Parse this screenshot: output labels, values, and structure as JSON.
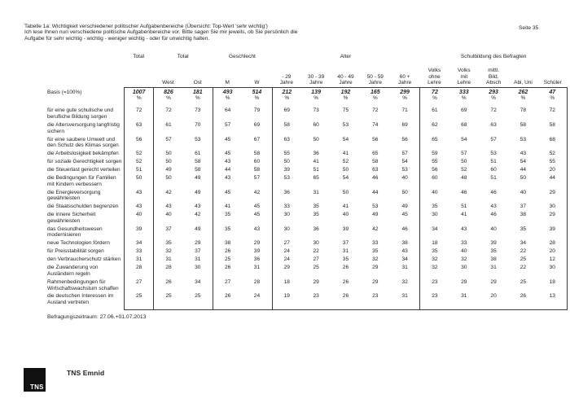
{
  "page": {
    "number_label": "Seite 35"
  },
  "header": {
    "title": "Tabelle 1a: Wichtigkeit verschiedener politischer Aufgabenbereiche (Übersicht: Top-Wert 'sehr wichtig')",
    "intro_line1": "Ich lese Ihnen nun verschiedene politische Aufgabenbereiche vor. Bitte sagen Sie mir jeweils, ob Sie persönlich die",
    "intro_line2": "Aufgabe für sehr wichtig - wichtig - weniger wichtig - oder für unwichtig halten."
  },
  "table": {
    "basis_label": "Basis (=100%)",
    "percent_sign": "%",
    "groups": [
      {
        "label": "Total",
        "columns": [
          {
            "label": "",
            "basis": "1007"
          }
        ]
      },
      {
        "label": "Total",
        "columns": [
          {
            "label": "West",
            "basis": "826"
          },
          {
            "label": "Ost",
            "basis": "181"
          }
        ]
      },
      {
        "label": "Geschlecht",
        "columns": [
          {
            "label": "M",
            "basis": "493"
          },
          {
            "label": "W",
            "basis": "514"
          }
        ]
      },
      {
        "label": "Alter",
        "columns": [
          {
            "label": "- 29\nJahre",
            "basis": "212"
          },
          {
            "label": "30 - 39\nJahre",
            "basis": "139"
          },
          {
            "label": "40 - 49\nJahre",
            "basis": "192"
          },
          {
            "label": "50 - 59\nJahre",
            "basis": "165"
          },
          {
            "label": "60 +\nJahre",
            "basis": "299"
          }
        ]
      },
      {
        "label": "Schulbildung des Befragten",
        "columns": [
          {
            "label": "Volks\nohne\nLehre",
            "basis": "72"
          },
          {
            "label": "Volks\nmit\nLehre",
            "basis": "333"
          },
          {
            "label": "mittl.\nBild.\nAbsch",
            "basis": "293"
          },
          {
            "label": "Abi, Uni",
            "basis": "262"
          },
          {
            "label": "Schüler",
            "basis": "47"
          }
        ]
      }
    ],
    "rows": [
      {
        "label": "für eine gute schulische und\nberufliche Bildung sorgen",
        "values": [
          72,
          72,
          73,
          64,
          79,
          69,
          73,
          75,
          72,
          71,
          61,
          69,
          72,
          78,
          72
        ]
      },
      {
        "label": "die Altersversorgung langfristig\nsichern",
        "values": [
          63,
          61,
          70,
          57,
          69,
          58,
          60,
          53,
          74,
          69,
          62,
          68,
          63,
          58,
          58
        ]
      },
      {
        "label": "für eine saubere Umwelt und\nden Schutz des Klimas sorgen",
        "values": [
          56,
          57,
          53,
          45,
          67,
          63,
          50,
          54,
          56,
          56,
          65,
          54,
          57,
          53,
          68
        ]
      },
      {
        "label": "die Arbeitslosigkeit bekämpfen",
        "values": [
          52,
          50,
          61,
          45,
          58,
          55,
          36,
          41,
          65,
          57,
          59,
          57,
          53,
          43,
          52
        ]
      },
      {
        "label": "für soziale Gerechtigkeit sorgen",
        "values": [
          52,
          50,
          58,
          43,
          60,
          50,
          41,
          52,
          58,
          54,
          55,
          50,
          51,
          54,
          55
        ]
      },
      {
        "label": "die Steuerlast gerecht verteilen",
        "values": [
          51,
          49,
          58,
          44,
          58,
          39,
          51,
          50,
          63,
          53,
          56,
          52,
          60,
          44,
          20
        ]
      },
      {
        "label": "die Bedingungen für Familien\nmit Kindern verbessern",
        "values": [
          50,
          50,
          49,
          43,
          57,
          53,
          65,
          54,
          46,
          40,
          60,
          48,
          51,
          50,
          44
        ]
      },
      {
        "label": "die Energieversorgung\ngewährleisten",
        "values": [
          43,
          42,
          49,
          45,
          42,
          36,
          31,
          50,
          44,
          50,
          40,
          46,
          46,
          40,
          29
        ]
      },
      {
        "label": "die Staatsschulden begrenzen",
        "values": [
          43,
          43,
          43,
          41,
          45,
          33,
          35,
          41,
          53,
          49,
          35,
          51,
          43,
          37,
          30
        ]
      },
      {
        "label": "die innere Sicherheit\ngewährleisten",
        "values": [
          40,
          40,
          42,
          35,
          45,
          30,
          35,
          40,
          49,
          45,
          30,
          41,
          46,
          38,
          29
        ]
      },
      {
        "label": "das Gesundheitswesen\nmodernisieren",
        "values": [
          39,
          37,
          49,
          35,
          43,
          30,
          36,
          39,
          42,
          46,
          34,
          43,
          40,
          35,
          39
        ]
      },
      {
        "label": "neue Technologien fördern",
        "values": [
          34,
          35,
          29,
          38,
          29,
          27,
          30,
          37,
          33,
          38,
          18,
          33,
          39,
          34,
          28
        ]
      },
      {
        "label": "für Preisstabilität sorgen",
        "values": [
          33,
          32,
          37,
          26,
          39,
          24,
          22,
          31,
          35,
          43,
          35,
          40,
          35,
          22,
          20
        ]
      },
      {
        "label": "den Verbraucherschutz stärken",
        "values": [
          31,
          31,
          31,
          25,
          36,
          24,
          27,
          35,
          32,
          34,
          32,
          32,
          38,
          25,
          12
        ]
      },
      {
        "label": "die Zuwanderung von\nAusländern regeln",
        "values": [
          28,
          28,
          30,
          26,
          31,
          29,
          25,
          26,
          29,
          31,
          32,
          30,
          31,
          22,
          30
        ]
      },
      {
        "label": "Rahmenbedingungen für\nWirtschaftswachstum schaffen",
        "values": [
          27,
          26,
          34,
          27,
          28,
          18,
          29,
          26,
          29,
          32,
          23,
          29,
          29,
          25,
          18
        ]
      },
      {
        "label": "die deutschen Interessen im\nAusland vertreten",
        "values": [
          25,
          25,
          25,
          26,
          24,
          19,
          23,
          26,
          23,
          31,
          23,
          31,
          20,
          26,
          13
        ]
      }
    ]
  },
  "footer": {
    "survey_period": "Befragungszeitraum: 27.06.+01.07.2013",
    "logo_text": "TNS",
    "brand": "TNS Emnid"
  }
}
